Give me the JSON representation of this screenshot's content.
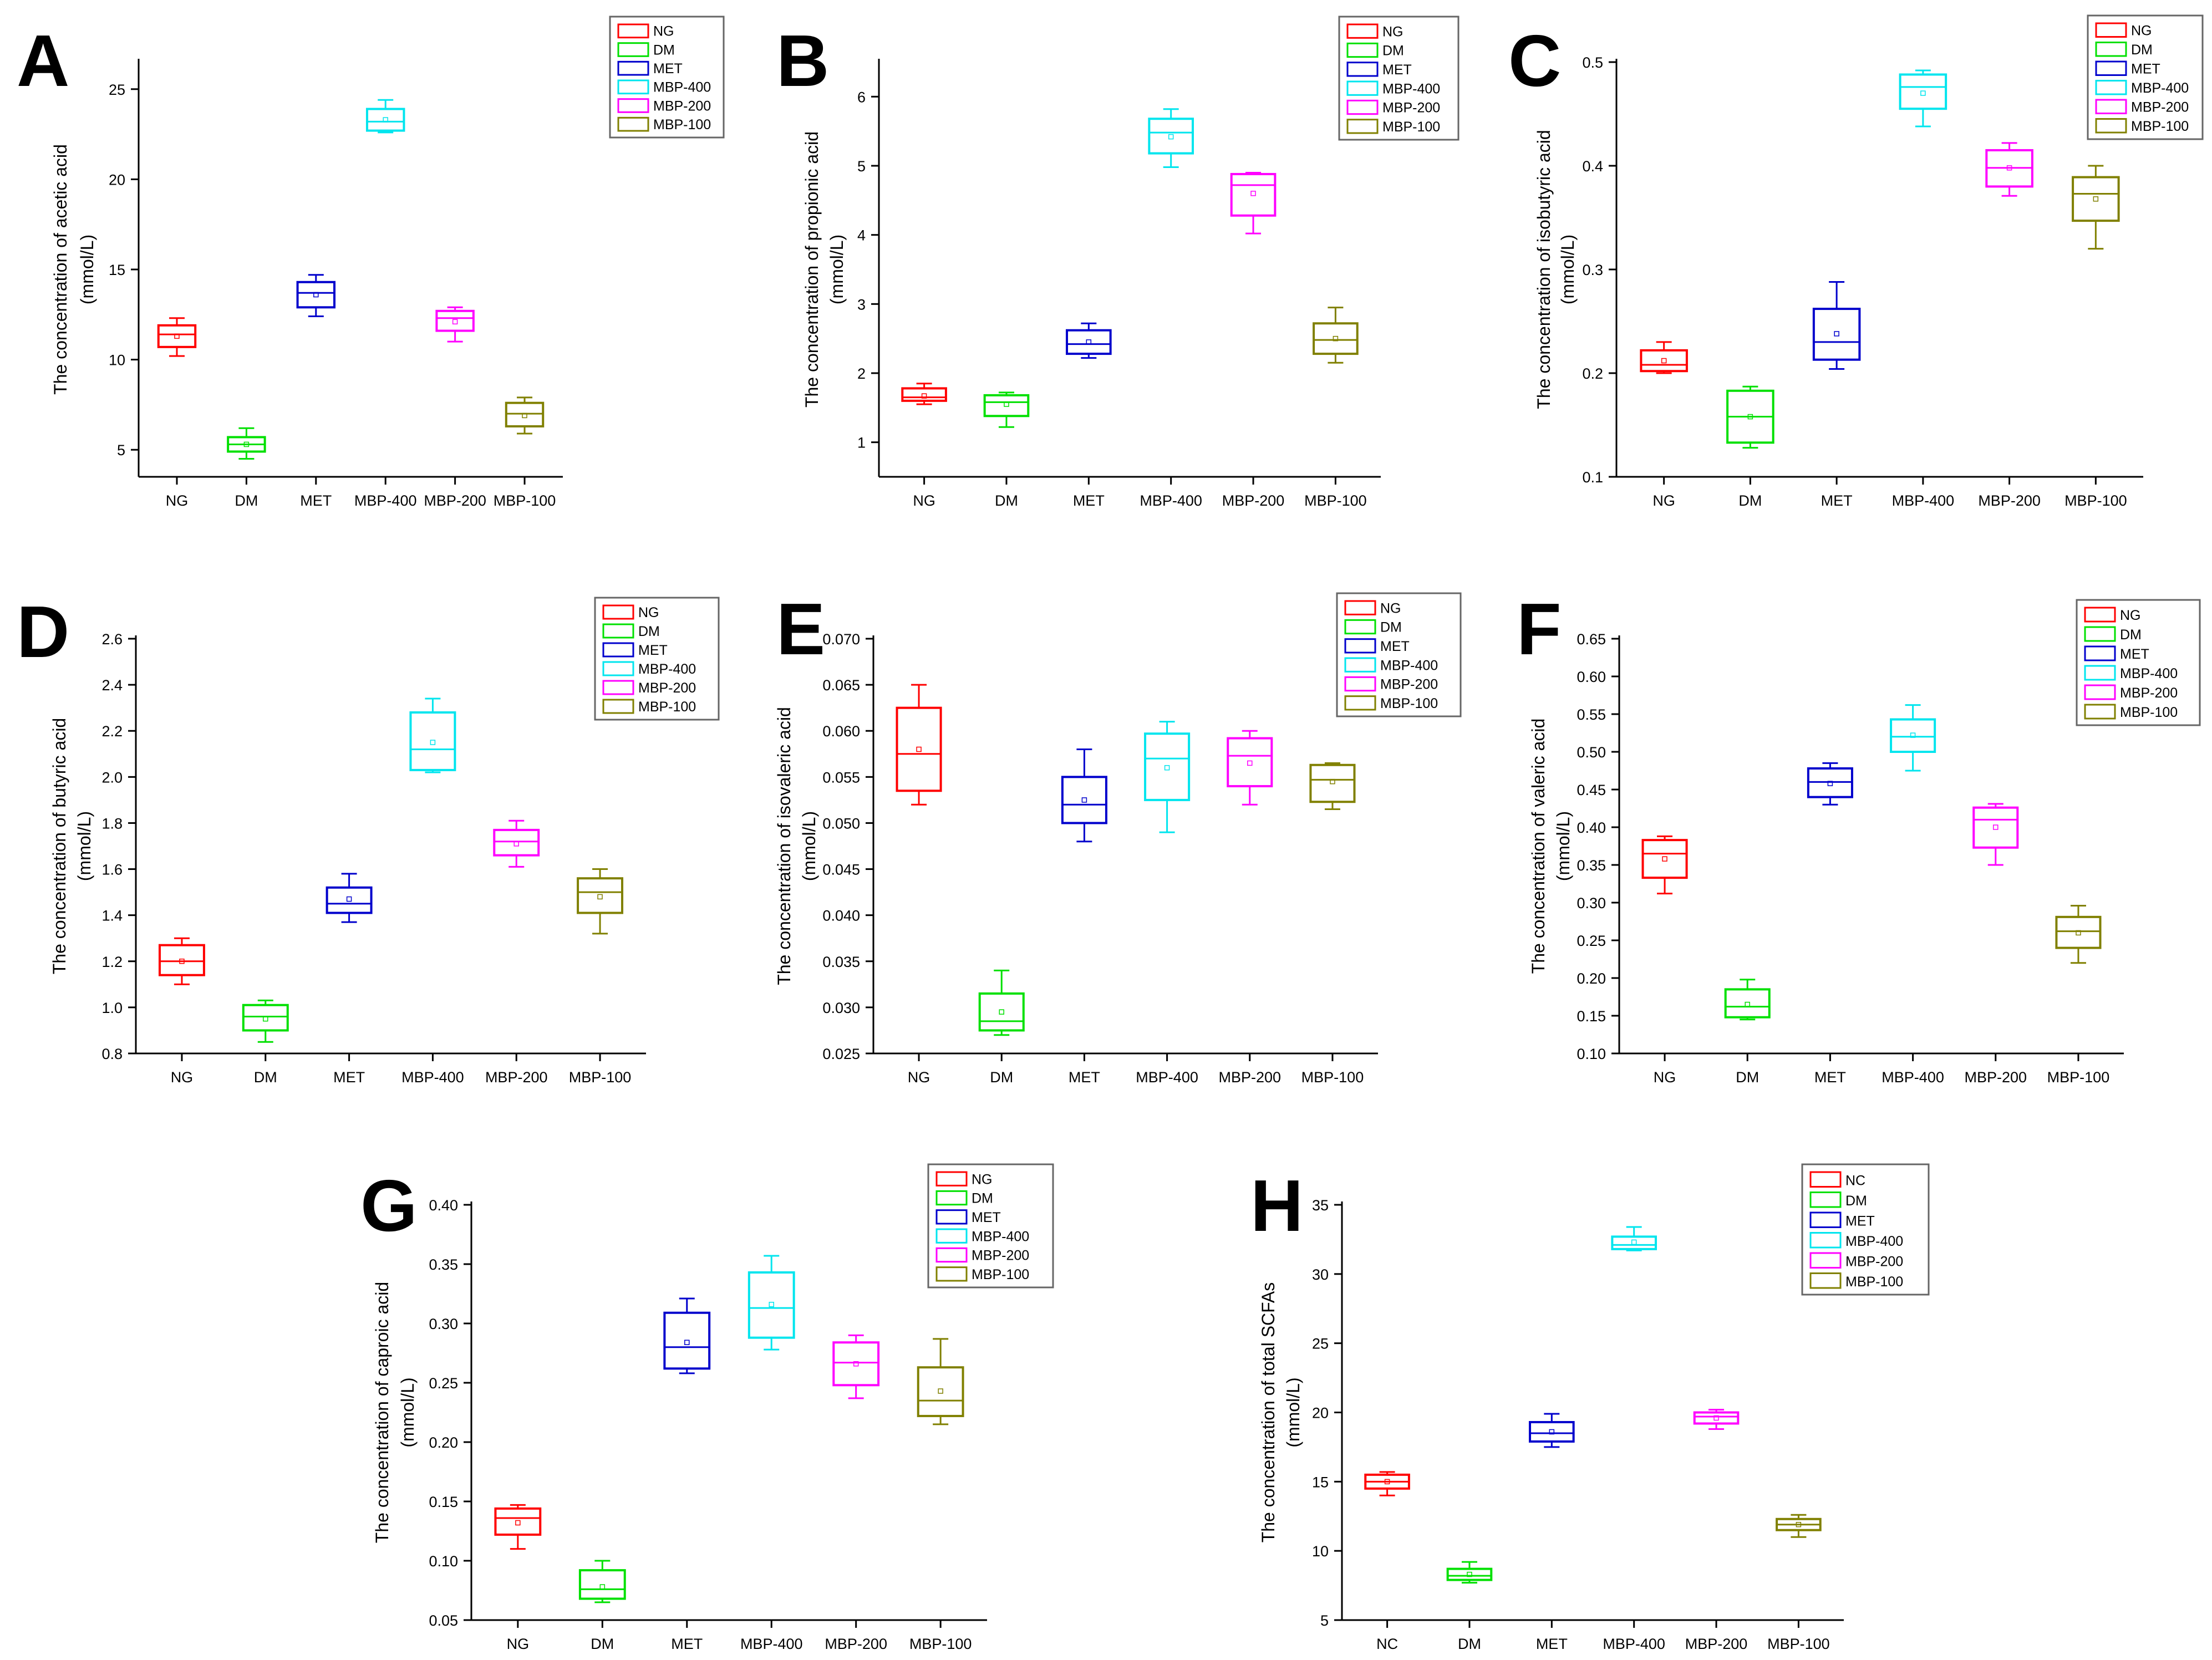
{
  "figure": {
    "type": "boxplot-grid",
    "y_unit": "(mmol/L)"
  },
  "chart_data": [
    {
      "panel": "A",
      "type": "box",
      "ylabel": "The concentration of acetic acid",
      "yunit": "(mmol/L)",
      "ylim": [
        3.5,
        26.5
      ],
      "yticks": [
        5,
        10,
        15,
        20,
        25
      ],
      "yticklabels": [
        "5",
        "10",
        "15",
        "20",
        "25"
      ],
      "categories": [
        "NG",
        "DM",
        "MET",
        "MBP-400",
        "MBP-200",
        "MBP-100"
      ],
      "legend": [
        "NG",
        "DM",
        "MET",
        "MBP-400",
        "MBP-200",
        "MBP-100"
      ],
      "series": [
        {
          "name": "NG",
          "min": 10.2,
          "q1": 10.7,
          "median": 11.4,
          "q3": 11.9,
          "max": 12.3,
          "mean": 11.3
        },
        {
          "name": "DM",
          "min": 4.5,
          "q1": 4.9,
          "median": 5.3,
          "q3": 5.7,
          "max": 6.2,
          "mean": 5.3
        },
        {
          "name": "MET",
          "min": 12.4,
          "q1": 12.9,
          "median": 13.7,
          "q3": 14.3,
          "max": 14.7,
          "mean": 13.6
        },
        {
          "name": "MBP-400",
          "min": 22.6,
          "q1": 22.7,
          "median": 23.2,
          "q3": 23.9,
          "max": 24.4,
          "mean": 23.3
        },
        {
          "name": "MBP-200",
          "min": 11.0,
          "q1": 11.6,
          "median": 12.3,
          "q3": 12.7,
          "max": 12.9,
          "mean": 12.1
        },
        {
          "name": "MBP-100",
          "min": 5.9,
          "q1": 6.3,
          "median": 7.0,
          "q3": 7.6,
          "max": 7.9,
          "mean": 6.9
        }
      ]
    },
    {
      "panel": "B",
      "type": "box",
      "ylabel": "The concentration of propionic acid",
      "yunit": "(mmol/L)",
      "ylim": [
        0.5,
        6.5
      ],
      "yticks": [
        1,
        2,
        3,
        4,
        5,
        6
      ],
      "yticklabels": [
        "1",
        "2",
        "3",
        "4",
        "5",
        "6"
      ],
      "categories": [
        "NG",
        "DM",
        "MET",
        "MBP-400",
        "MBP-200",
        "MBP-100"
      ],
      "legend": [
        "NG",
        "DM",
        "MET",
        "MBP-400",
        "MBP-200",
        "MBP-100"
      ],
      "series": [
        {
          "name": "NG",
          "min": 1.55,
          "q1": 1.6,
          "median": 1.65,
          "q3": 1.78,
          "max": 1.85,
          "mean": 1.67
        },
        {
          "name": "DM",
          "min": 1.22,
          "q1": 1.38,
          "median": 1.58,
          "q3": 1.68,
          "max": 1.72,
          "mean": 1.55
        },
        {
          "name": "MET",
          "min": 2.22,
          "q1": 2.28,
          "median": 2.42,
          "q3": 2.62,
          "max": 2.72,
          "mean": 2.45
        },
        {
          "name": "MBP-400",
          "min": 4.98,
          "q1": 5.18,
          "median": 5.48,
          "q3": 5.68,
          "max": 5.82,
          "mean": 5.42
        },
        {
          "name": "MBP-200",
          "min": 4.02,
          "q1": 4.28,
          "median": 4.72,
          "q3": 4.88,
          "max": 4.9,
          "mean": 4.6
        },
        {
          "name": "MBP-100",
          "min": 2.15,
          "q1": 2.28,
          "median": 2.48,
          "q3": 2.72,
          "max": 2.95,
          "mean": 2.5
        }
      ]
    },
    {
      "panel": "C",
      "type": "box",
      "ylabel": "The concentration of isobutyric acid",
      "yunit": "(mmol/L)",
      "ylim": [
        0.1,
        0.5
      ],
      "yticks": [
        0.1,
        0.2,
        0.3,
        0.4,
        0.5
      ],
      "yticklabels": [
        "0.1",
        "0.2",
        "0.3",
        "0.4",
        "0.5"
      ],
      "categories": [
        "NG",
        "DM",
        "MET",
        "MBP-400",
        "MBP-200",
        "MBP-100"
      ],
      "legend": [
        "NG",
        "DM",
        "MET",
        "MBP-400",
        "MBP-200",
        "MBP-100"
      ],
      "series": [
        {
          "name": "NG",
          "min": 0.2,
          "q1": 0.202,
          "median": 0.208,
          "q3": 0.222,
          "max": 0.23,
          "mean": 0.212
        },
        {
          "name": "DM",
          "min": 0.128,
          "q1": 0.133,
          "median": 0.158,
          "q3": 0.183,
          "max": 0.187,
          "mean": 0.158
        },
        {
          "name": "MET",
          "min": 0.204,
          "q1": 0.213,
          "median": 0.23,
          "q3": 0.262,
          "max": 0.288,
          "mean": 0.238
        },
        {
          "name": "MBP-400",
          "min": 0.438,
          "q1": 0.455,
          "median": 0.476,
          "q3": 0.488,
          "max": 0.492,
          "mean": 0.47
        },
        {
          "name": "MBP-200",
          "min": 0.371,
          "q1": 0.38,
          "median": 0.398,
          "q3": 0.415,
          "max": 0.422,
          "mean": 0.398
        },
        {
          "name": "MBP-100",
          "min": 0.32,
          "q1": 0.347,
          "median": 0.373,
          "q3": 0.389,
          "max": 0.4,
          "mean": 0.368
        }
      ]
    },
    {
      "panel": "D",
      "type": "box",
      "ylabel": "The concentration of  butyric acid",
      "yunit": "(mmol/L)",
      "ylim": [
        0.8,
        2.6
      ],
      "yticks": [
        0.8,
        1.0,
        1.2,
        1.4,
        1.6,
        1.8,
        2.0,
        2.2,
        2.4,
        2.6
      ],
      "yticklabels": [
        "0.8",
        "1.0",
        "1.2",
        "1.4",
        "1.6",
        "1.8",
        "2.0",
        "2.2",
        "2.4",
        "2.6"
      ],
      "categories": [
        "NG",
        "DM",
        "MET",
        "MBP-400",
        "MBP-200",
        "MBP-100"
      ],
      "legend": [
        "NG",
        "DM",
        "MET",
        "MBP-400",
        "MBP-200",
        "MBP-100"
      ],
      "series": [
        {
          "name": "NG",
          "min": 1.1,
          "q1": 1.14,
          "median": 1.2,
          "q3": 1.27,
          "max": 1.3,
          "mean": 1.2
        },
        {
          "name": "DM",
          "min": 0.85,
          "q1": 0.9,
          "median": 0.96,
          "q3": 1.01,
          "max": 1.03,
          "mean": 0.95
        },
        {
          "name": "MET",
          "min": 1.37,
          "q1": 1.41,
          "median": 1.45,
          "q3": 1.52,
          "max": 1.58,
          "mean": 1.47
        },
        {
          "name": "MBP-400",
          "min": 2.02,
          "q1": 2.03,
          "median": 2.12,
          "q3": 2.28,
          "max": 2.34,
          "mean": 2.15
        },
        {
          "name": "MBP-200",
          "min": 1.61,
          "q1": 1.66,
          "median": 1.72,
          "q3": 1.77,
          "max": 1.81,
          "mean": 1.71
        },
        {
          "name": "MBP-100",
          "min": 1.32,
          "q1": 1.41,
          "median": 1.5,
          "q3": 1.56,
          "max": 1.6,
          "mean": 1.48
        }
      ]
    },
    {
      "panel": "E",
      "type": "box",
      "ylabel": "The concentration of isovaleric acid",
      "yunit": "(mmol/L)",
      "ylim": [
        0.025,
        0.07
      ],
      "yticks": [
        0.025,
        0.03,
        0.035,
        0.04,
        0.045,
        0.05,
        0.055,
        0.06,
        0.065,
        0.07
      ],
      "yticklabels": [
        "0.025",
        "0.030",
        "0.035",
        "0.040",
        "0.045",
        "0.050",
        "0.055",
        "0.060",
        "0.065",
        "0.070"
      ],
      "categories": [
        "NG",
        "DM",
        "MET",
        "MBP-400",
        "MBP-200",
        "MBP-100"
      ],
      "legend": [
        "NG",
        "DM",
        "MET",
        "MBP-400",
        "MBP-200",
        "MBP-100"
      ],
      "series": [
        {
          "name": "NG",
          "min": 0.052,
          "q1": 0.0535,
          "median": 0.0575,
          "q3": 0.0625,
          "max": 0.065,
          "mean": 0.058
        },
        {
          "name": "DM",
          "min": 0.027,
          "q1": 0.0275,
          "median": 0.0285,
          "q3": 0.0315,
          "max": 0.034,
          "mean": 0.0295
        },
        {
          "name": "MET",
          "min": 0.048,
          "q1": 0.05,
          "median": 0.052,
          "q3": 0.055,
          "max": 0.058,
          "mean": 0.0525
        },
        {
          "name": "MBP-400",
          "min": 0.049,
          "q1": 0.0525,
          "median": 0.057,
          "q3": 0.0597,
          "max": 0.061,
          "mean": 0.056
        },
        {
          "name": "MBP-200",
          "min": 0.052,
          "q1": 0.054,
          "median": 0.0573,
          "q3": 0.0592,
          "max": 0.06,
          "mean": 0.0565
        },
        {
          "name": "MBP-100",
          "min": 0.0515,
          "q1": 0.0523,
          "median": 0.0547,
          "q3": 0.0563,
          "max": 0.0565,
          "mean": 0.0545
        }
      ]
    },
    {
      "panel": "F",
      "type": "box",
      "ylabel": "The concentration of valeric acid",
      "yunit": "(mmol/L)",
      "ylim": [
        0.1,
        0.65
      ],
      "yticks": [
        0.1,
        0.15,
        0.2,
        0.25,
        0.3,
        0.35,
        0.4,
        0.45,
        0.5,
        0.55,
        0.6,
        0.65
      ],
      "yticklabels": [
        "0.10",
        "0.15",
        "0.20",
        "0.25",
        "0.30",
        "0.35",
        "0.40",
        "0.45",
        "0.50",
        "0.55",
        "0.60",
        "0.65"
      ],
      "categories": [
        "NG",
        "DM",
        "MET",
        "MBP-400",
        "MBP-200",
        "MBP-100"
      ],
      "legend": [
        "NG",
        "DM",
        "MET",
        "MBP-400",
        "MBP-200",
        "MBP-100"
      ],
      "series": [
        {
          "name": "NG",
          "min": 0.312,
          "q1": 0.333,
          "median": 0.365,
          "q3": 0.383,
          "max": 0.388,
          "mean": 0.358
        },
        {
          "name": "DM",
          "min": 0.145,
          "q1": 0.148,
          "median": 0.162,
          "q3": 0.185,
          "max": 0.198,
          "mean": 0.165
        },
        {
          "name": "MET",
          "min": 0.43,
          "q1": 0.44,
          "median": 0.46,
          "q3": 0.478,
          "max": 0.485,
          "mean": 0.458
        },
        {
          "name": "MBP-400",
          "min": 0.475,
          "q1": 0.5,
          "median": 0.52,
          "q3": 0.543,
          "max": 0.562,
          "mean": 0.522
        },
        {
          "name": "MBP-200",
          "min": 0.35,
          "q1": 0.373,
          "median": 0.41,
          "q3": 0.426,
          "max": 0.431,
          "mean": 0.4
        },
        {
          "name": "MBP-100",
          "min": 0.22,
          "q1": 0.24,
          "median": 0.262,
          "q3": 0.281,
          "max": 0.296,
          "mean": 0.26
        }
      ]
    },
    {
      "panel": "G",
      "type": "box",
      "ylabel": "The concentration of caproic acid",
      "yunit": "(mmol/L)",
      "ylim": [
        0.05,
        0.4
      ],
      "yticks": [
        0.05,
        0.1,
        0.15,
        0.2,
        0.25,
        0.3,
        0.35,
        0.4
      ],
      "yticklabels": [
        "0.05",
        "0.10",
        "0.15",
        "0.20",
        "0.25",
        "0.30",
        "0.35",
        "0.40"
      ],
      "categories": [
        "NG",
        "DM",
        "MET",
        "MBP-400",
        "MBP-200",
        "MBP-100"
      ],
      "legend": [
        "NG",
        "DM",
        "MET",
        "MBP-400",
        "MBP-200",
        "MBP-100"
      ],
      "series": [
        {
          "name": "NG",
          "min": 0.11,
          "q1": 0.122,
          "median": 0.136,
          "q3": 0.144,
          "max": 0.147,
          "mean": 0.132
        },
        {
          "name": "DM",
          "min": 0.065,
          "q1": 0.068,
          "median": 0.076,
          "q3": 0.092,
          "max": 0.1,
          "mean": 0.078
        },
        {
          "name": "MET",
          "min": 0.258,
          "q1": 0.262,
          "median": 0.28,
          "q3": 0.309,
          "max": 0.321,
          "mean": 0.284
        },
        {
          "name": "MBP-400",
          "min": 0.278,
          "q1": 0.288,
          "median": 0.313,
          "q3": 0.343,
          "max": 0.357,
          "mean": 0.316
        },
        {
          "name": "MBP-200",
          "min": 0.237,
          "q1": 0.248,
          "median": 0.267,
          "q3": 0.284,
          "max": 0.29,
          "mean": 0.266
        },
        {
          "name": "MBP-100",
          "min": 0.215,
          "q1": 0.222,
          "median": 0.235,
          "q3": 0.263,
          "max": 0.287,
          "mean": 0.243
        }
      ]
    },
    {
      "panel": "H",
      "type": "box",
      "ylabel": "The concentration of total SCFAs",
      "yunit": "(mmol/L)",
      "ylim": [
        5,
        35
      ],
      "yticks": [
        5,
        10,
        15,
        20,
        25,
        30,
        35
      ],
      "yticklabels": [
        "5",
        "10",
        "15",
        "20",
        "25",
        "30",
        "35"
      ],
      "categories": [
        "NC",
        "DM",
        "MET",
        "MBP-400",
        "MBP-200",
        "MBP-100"
      ],
      "legend": [
        "NC",
        "DM",
        "MET",
        "MBP-400",
        "MBP-200",
        "MBP-100"
      ],
      "series": [
        {
          "name": "NC",
          "min": 14.0,
          "q1": 14.5,
          "median": 15.0,
          "q3": 15.5,
          "max": 15.7,
          "mean": 15.0
        },
        {
          "name": "DM",
          "min": 7.7,
          "q1": 7.9,
          "median": 8.2,
          "q3": 8.7,
          "max": 9.2,
          "mean": 8.3
        },
        {
          "name": "MET",
          "min": 17.5,
          "q1": 17.9,
          "median": 18.5,
          "q3": 19.3,
          "max": 19.9,
          "mean": 18.6
        },
        {
          "name": "MBP-400",
          "min": 31.7,
          "q1": 31.8,
          "median": 32.1,
          "q3": 32.7,
          "max": 33.4,
          "mean": 32.3
        },
        {
          "name": "MBP-200",
          "min": 18.8,
          "q1": 19.2,
          "median": 19.7,
          "q3": 20.0,
          "max": 20.2,
          "mean": 19.6
        },
        {
          "name": "MBP-100",
          "min": 11.0,
          "q1": 11.5,
          "median": 11.9,
          "q3": 12.3,
          "max": 12.6,
          "mean": 11.9
        }
      ]
    }
  ],
  "colors": {
    "NG": "#ff0000",
    "NC": "#ff0000",
    "DM": "#00e000",
    "MET": "#0000cc",
    "MBP-400": "#00e5ee",
    "MBP-200": "#ff00ff",
    "MBP-100": "#808000"
  }
}
